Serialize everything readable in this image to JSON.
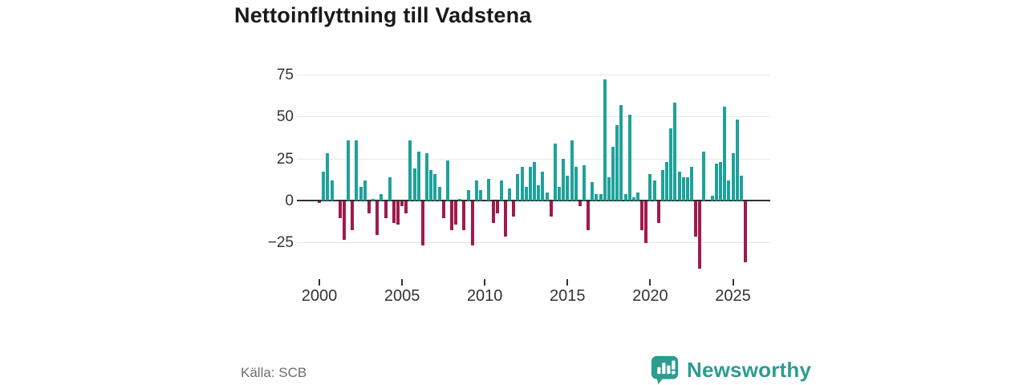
{
  "title": "Nettoinflyttning till Vadstena",
  "source": "Källa: SCB",
  "logo": {
    "text": "Newsworthy"
  },
  "chart_data": {
    "type": "bar",
    "title": "Nettoinflyttning till Vadstena",
    "xlabel": "",
    "ylabel": "",
    "period": "quarterly",
    "start_year": 2000,
    "start_quarter": 1,
    "x_tick_years": [
      2000,
      2005,
      2010,
      2015,
      2020,
      2025
    ],
    "x_tick_labels": [
      "2000",
      "2005",
      "2010",
      "2015",
      "2020",
      "2025"
    ],
    "y_ticks": [
      75,
      50,
      25,
      0,
      -25
    ],
    "y_tick_labels": [
      "75",
      "50",
      "25",
      "0",
      "−25"
    ],
    "ylim": [
      -45,
      80
    ],
    "grid": true,
    "colors": {
      "positive": "#1ea29a",
      "negative": "#a11a4d"
    },
    "values": [
      -1,
      17,
      28,
      12,
      0,
      -10,
      -23,
      36,
      -17,
      36,
      8,
      12,
      -7,
      1,
      -20,
      4,
      -10,
      14,
      -13,
      -14,
      -3,
      -7,
      36,
      19,
      29,
      -26,
      28,
      18,
      16,
      8,
      -10,
      24,
      -17,
      -14,
      1,
      -17,
      6,
      -26,
      12,
      6,
      0,
      13,
      -13,
      -7,
      12,
      -21,
      7,
      -9,
      16,
      20,
      8,
      20,
      23,
      9,
      17,
      5,
      -9,
      34,
      8,
      25,
      15,
      36,
      20,
      -3,
      21,
      -17,
      11,
      4,
      4,
      72,
      14,
      32,
      45,
      57,
      4,
      51,
      2,
      5,
      -17,
      -25,
      16,
      12,
      -13,
      18,
      23,
      43,
      58,
      17,
      14,
      14,
      20,
      -21,
      -40,
      29,
      0,
      3,
      22,
      23,
      56,
      12,
      28,
      48,
      15,
      -36
    ]
  }
}
